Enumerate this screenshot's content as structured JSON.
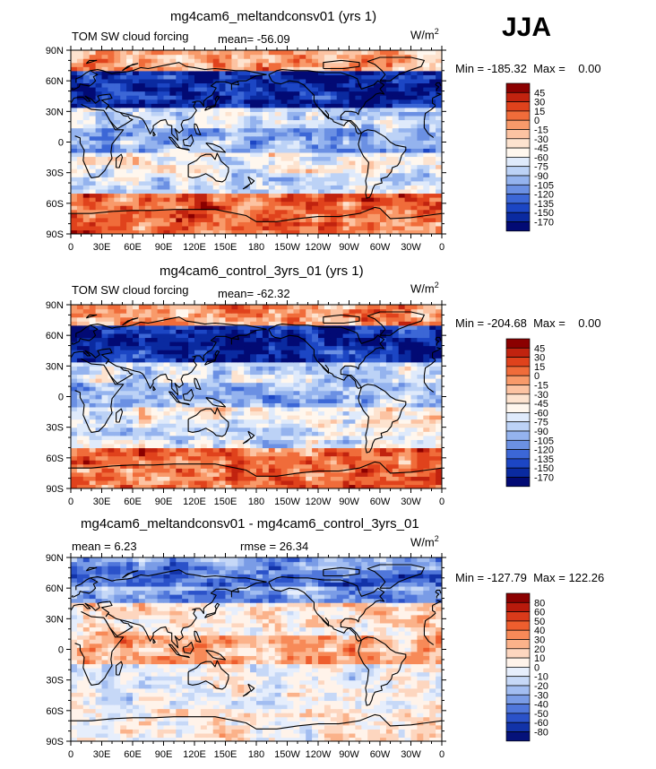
{
  "season": "JJA",
  "panels": [
    {
      "title": "mg4cam6_meltandconsv01 (yrs 1)",
      "left_label": "TOM SW cloud forcing",
      "center_label": "mean=  -56.09",
      "units": "W/m",
      "units_sup": "2",
      "minmax": "Min = -185.32  Max =    0.00",
      "colorbar_labels": [
        "45",
        "30",
        "15",
        "0",
        "-15",
        "-30",
        "-45",
        "-60",
        "-75",
        "-90",
        "-105",
        "-120",
        "-135",
        "-150",
        "-170"
      ],
      "colorbar_colors": [
        "#8b0000",
        "#c1230f",
        "#e0421c",
        "#f06c3a",
        "#f89a6a",
        "#fcc3a2",
        "#fde3cf",
        "#fff7ee",
        "#dfeafb",
        "#bcd2f6",
        "#94b3ee",
        "#6b90e3",
        "#3c67d6",
        "#1c46c4",
        "#0a2aa0",
        "#020a74"
      ],
      "map_id": "p1"
    },
    {
      "title": "mg4cam6_control_3yrs_01 (yrs 1)",
      "left_label": "TOM SW cloud forcing",
      "center_label": "mean=  -62.32",
      "units": "W/m",
      "units_sup": "2",
      "minmax": "Min = -204.68  Max =    0.00",
      "colorbar_labels": [
        "45",
        "30",
        "15",
        "0",
        "-15",
        "-30",
        "-45",
        "-60",
        "-75",
        "-90",
        "-105",
        "-120",
        "-135",
        "-150",
        "-170"
      ],
      "colorbar_colors": [
        "#8b0000",
        "#c1230f",
        "#e0421c",
        "#f06c3a",
        "#f89a6a",
        "#fcc3a2",
        "#fde3cf",
        "#fff7ee",
        "#dfeafb",
        "#bcd2f6",
        "#94b3ee",
        "#6b90e3",
        "#3c67d6",
        "#1c46c4",
        "#0a2aa0",
        "#020a74"
      ],
      "map_id": "p2"
    },
    {
      "title": "mg4cam6_meltandconsv01 - mg4cam6_control_3yrs_01",
      "left_label": "mean =     6.23",
      "center_label": "rmse =   26.34",
      "units": "W/m",
      "units_sup": "2",
      "minmax": "Min = -127.79  Max = 122.26",
      "colorbar_labels": [
        "80",
        "60",
        "50",
        "40",
        "30",
        "20",
        "10",
        "0",
        "-10",
        "-20",
        "-30",
        "-40",
        "-50",
        "-60",
        "-80"
      ],
      "colorbar_colors": [
        "#8b0000",
        "#b81a0c",
        "#d93a1a",
        "#ee5e2e",
        "#f78a58",
        "#fbb28a",
        "#fdd6bf",
        "#fff3ea",
        "#e6eefc",
        "#c6d8f7",
        "#a2bdf1",
        "#7a9ce6",
        "#5077db",
        "#2b52c9",
        "#1233a8",
        "#05127a"
      ],
      "map_id": "p3"
    }
  ],
  "axes": {
    "lat_labels": [
      "90N",
      "60N",
      "30N",
      "0",
      "30S",
      "60S",
      "90S"
    ],
    "lon_labels": [
      "0",
      "30E",
      "60E",
      "90E",
      "120E",
      "150E",
      "180",
      "150W",
      "120W",
      "90W",
      "60W",
      "30W",
      "0"
    ]
  }
}
